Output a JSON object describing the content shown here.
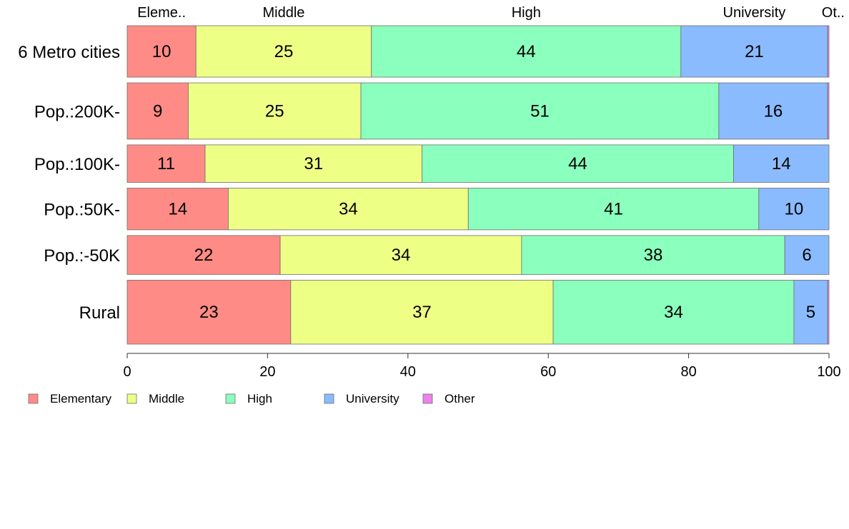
{
  "chart_data": {
    "type": "bar",
    "orientation": "horizontal",
    "stacked": true,
    "title": "",
    "xlabel": "",
    "ylabel": "",
    "xlim": [
      0,
      100
    ],
    "x_ticks": [
      "0",
      "20",
      "40",
      "60",
      "80",
      "100"
    ],
    "grid": false,
    "legend_position": "bottom-left",
    "categories": [
      "6 Metro cities",
      "Pop.:200K-",
      "Pop.:100K-",
      "Pop.:50K-",
      "Pop.:-50K",
      "Rural"
    ],
    "row_weights": [
      74,
      81,
      54,
      60,
      56,
      92
    ],
    "top_labels": [
      "Eleme..",
      "Middle",
      "High",
      "University",
      "Ot.."
    ],
    "series": [
      {
        "name": "Elementary",
        "color": "#FF8B86",
        "values": [
          9.8,
          8.7,
          11.1,
          14.4,
          21.8,
          23.3
        ]
      },
      {
        "name": "Middle",
        "color": "#EEFF86",
        "values": [
          25.0,
          24.6,
          30.9,
          34.2,
          34.4,
          37.4
        ]
      },
      {
        "name": "High",
        "color": "#8BFFBD",
        "values": [
          44.1,
          51.0,
          44.4,
          41.4,
          37.5,
          34.3
        ]
      },
      {
        "name": "University",
        "color": "#8BBBFF",
        "values": [
          20.9,
          15.5,
          13.6,
          10.0,
          6.3,
          4.8
        ]
      },
      {
        "name": "Other",
        "color": "#EE82EE",
        "values": [
          0.2,
          0.2,
          0.0,
          0.0,
          0.0,
          0.2
        ]
      }
    ],
    "data_labels": [
      [
        "10",
        "25",
        "44",
        "21",
        ""
      ],
      [
        "9",
        "25",
        "51",
        "16",
        ""
      ],
      [
        "11",
        "31",
        "44",
        "14",
        ""
      ],
      [
        "14",
        "34",
        "41",
        "10",
        ""
      ],
      [
        "22",
        "34",
        "38",
        "6",
        ""
      ],
      [
        "23",
        "37",
        "34",
        "5",
        ""
      ]
    ]
  }
}
